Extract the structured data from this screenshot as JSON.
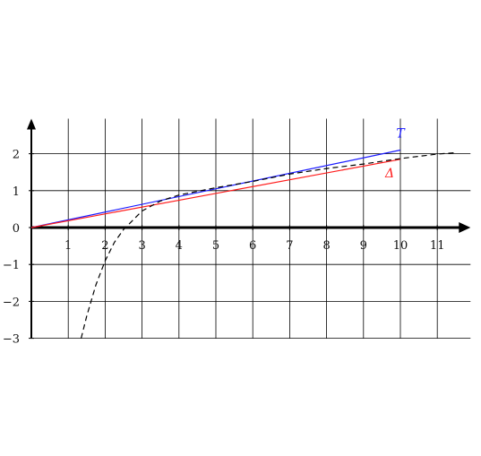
{
  "chart_data": {
    "type": "line",
    "title": "",
    "xlabel": "",
    "ylabel": "",
    "xlim": [
      -0.05,
      11.9
    ],
    "ylim": [
      -3,
      2.95
    ],
    "grid": true,
    "x_ticks": [
      "1",
      "2",
      "3",
      "4",
      "5",
      "6",
      "7",
      "8",
      "9",
      "10",
      "11"
    ],
    "y_ticks": [
      "2",
      "1",
      "0",
      "−1",
      "−2",
      "−3"
    ],
    "y_tick_values": [
      2,
      1,
      0,
      -1,
      -2,
      -3
    ],
    "series": [
      {
        "name": "T",
        "style": "solid",
        "color": "#1a1aff",
        "x": [
          0,
          10
        ],
        "y": [
          0,
          2.1
        ]
      },
      {
        "name": "Δ",
        "style": "solid",
        "color": "#ff1a1a",
        "x": [
          0,
          10
        ],
        "y": [
          0,
          1.85
        ]
      },
      {
        "name": "",
        "style": "dashed",
        "color": "#000000",
        "x": [
          1.35,
          1.5,
          1.75,
          2,
          2.25,
          2.5,
          3,
          3.5,
          4,
          4.5,
          5,
          6,
          7,
          8,
          9,
          10,
          11,
          11.5
        ],
        "y": [
          -3,
          -2.4,
          -1.55,
          -0.9,
          -0.4,
          -0.05,
          0.45,
          0.72,
          0.88,
          0.98,
          1.08,
          1.25,
          1.45,
          1.6,
          1.72,
          1.87,
          1.99,
          2.03
        ]
      }
    ]
  }
}
